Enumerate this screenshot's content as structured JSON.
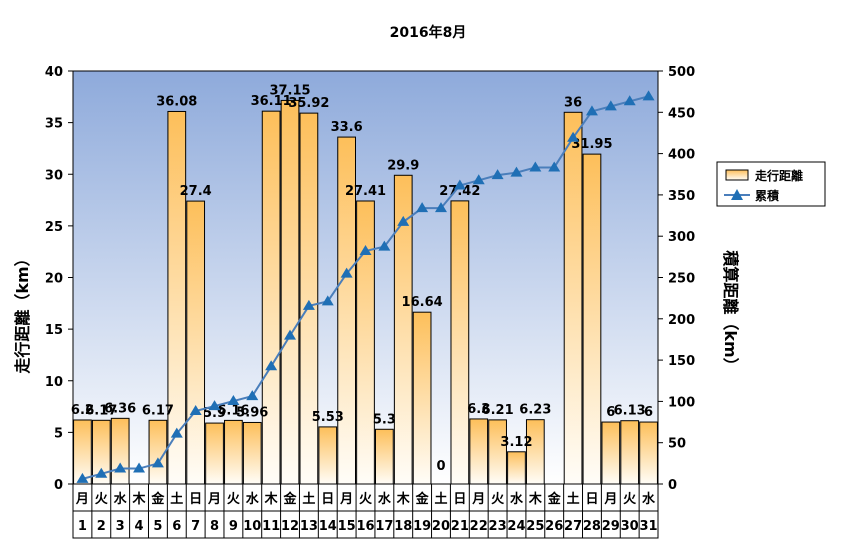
{
  "chart_data": {
    "type": "bar+line",
    "title": "2016年8月",
    "ylabel_left": "走行距離（km）",
    "ylabel_right": "積算距離（km）",
    "ylim_left": [
      0,
      40
    ],
    "ylim_right": [
      0,
      500
    ],
    "yticks_left": [
      "0",
      "5",
      "10",
      "15",
      "20",
      "25",
      "30",
      "35",
      "40"
    ],
    "yticks_right": [
      "0",
      "50",
      "100",
      "150",
      "200",
      "250",
      "300",
      "350",
      "400",
      "450",
      "500"
    ],
    "weekdays": [
      "月",
      "火",
      "水",
      "木",
      "金",
      "土",
      "日",
      "月",
      "火",
      "水",
      "木",
      "金",
      "土",
      "日",
      "月",
      "火",
      "水",
      "木",
      "金",
      "土",
      "日",
      "月",
      "火",
      "水",
      "木",
      "金",
      "土",
      "日",
      "月",
      "火",
      "水"
    ],
    "days": [
      "1",
      "2",
      "3",
      "4",
      "5",
      "6",
      "7",
      "8",
      "9",
      "10",
      "11",
      "12",
      "13",
      "14",
      "15",
      "16",
      "17",
      "18",
      "19",
      "20",
      "21",
      "22",
      "23",
      "24",
      "25",
      "26",
      "27",
      "28",
      "29",
      "30",
      "31"
    ],
    "series": [
      {
        "name": "走行距離",
        "kind": "bar",
        "values": [
          6.2,
          6.17,
          6.36,
          0,
          6.17,
          36.08,
          27.4,
          5.9,
          6.16,
          5.96,
          36.11,
          37.15,
          35.92,
          5.53,
          33.6,
          27.41,
          5.3,
          29.9,
          16.64,
          0,
          27.42,
          6.3,
          6.21,
          3.12,
          6.23,
          0,
          36,
          31.95,
          6,
          6.13,
          6
        ],
        "labels": [
          "6.2",
          "6.17",
          "6.36",
          "",
          "6.17",
          "36.08",
          "27.4",
          "5.9",
          "6.16",
          "5.96",
          "36.11",
          "37.15",
          "35.92",
          "5.53",
          "33.6",
          "27.41",
          "5.3",
          "29.9",
          "16.64",
          "0",
          "27.42",
          "6.3",
          "6.21",
          "3.12",
          "6.23",
          "",
          "36",
          "31.95",
          "6",
          "6.13",
          "6"
        ]
      },
      {
        "name": "累積",
        "kind": "line",
        "values": [
          6.2,
          12.37,
          18.73,
          18.73,
          24.9,
          60.98,
          88.38,
          94.28,
          100.44,
          106.4,
          142.51,
          179.66,
          215.58,
          221.11,
          254.71,
          282.12,
          287.42,
          317.32,
          333.96,
          333.96,
          361.38,
          367.68,
          373.89,
          377.01,
          383.24,
          383.24,
          419.24,
          451.19,
          457.19,
          463.32,
          469.32
        ]
      }
    ],
    "legend_position": "right",
    "colors": {
      "plot_top": "#8eaadb",
      "plot_bottom": "#ffffff",
      "bar_top": "#fdbf5a",
      "bar_bottom": "#fffdf8",
      "line": "#4a7ebb",
      "marker": "#1f6fb5"
    }
  }
}
